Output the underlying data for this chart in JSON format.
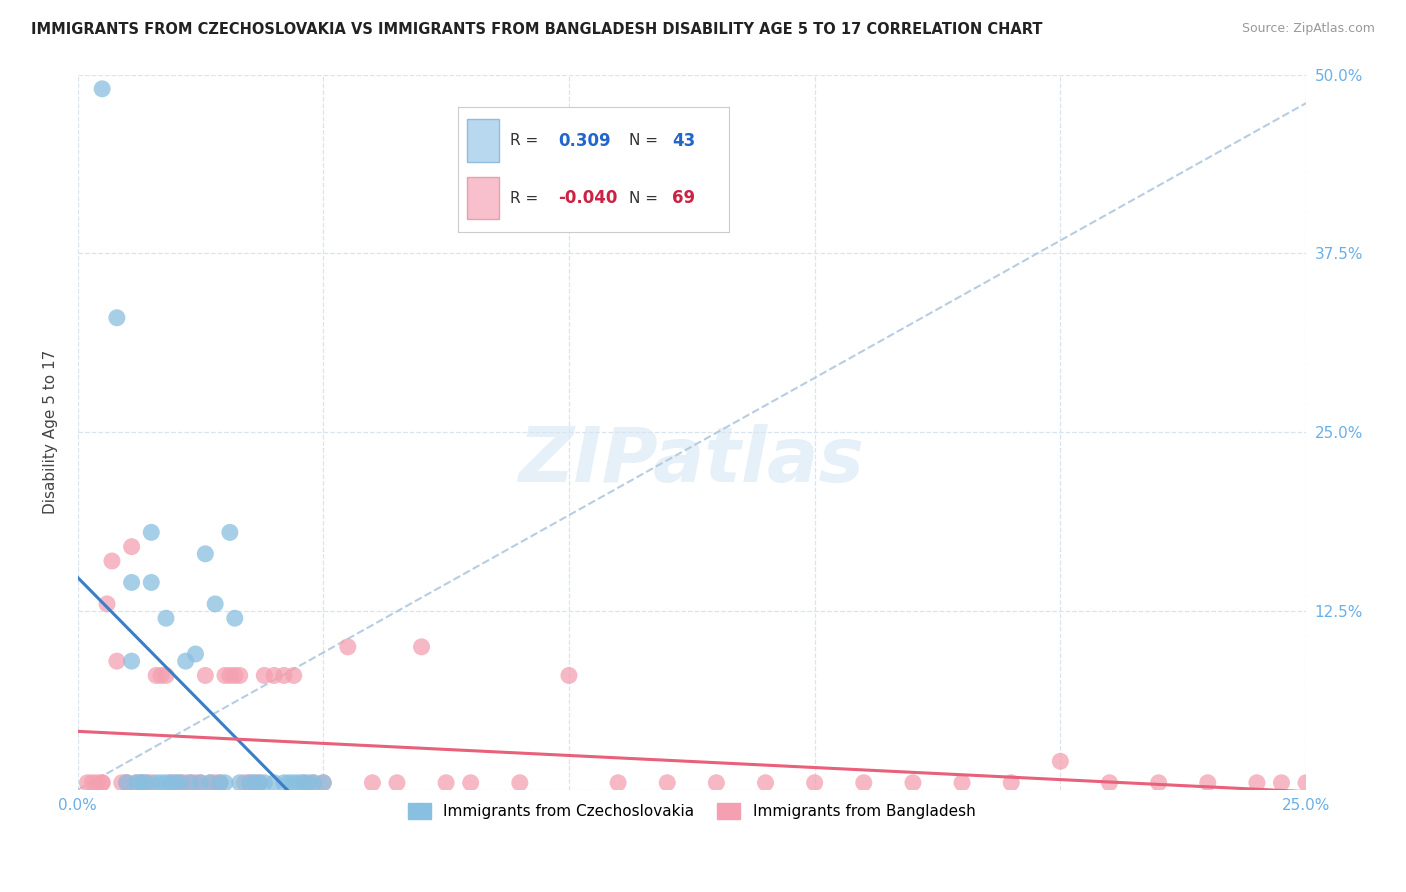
{
  "title": "IMMIGRANTS FROM CZECHOSLOVAKIA VS IMMIGRANTS FROM BANGLADESH DISABILITY AGE 5 TO 17 CORRELATION CHART",
  "source": "Source: ZipAtlas.com",
  "ylabel": "Disability Age 5 to 17",
  "xlim": [
    0.0,
    0.25
  ],
  "ylim": [
    0.0,
    0.5
  ],
  "xticks": [
    0.0,
    0.05,
    0.1,
    0.15,
    0.2,
    0.25
  ],
  "yticks": [
    0.0,
    0.125,
    0.25,
    0.375,
    0.5
  ],
  "legend_label1": "Immigrants from Czechoslovakia",
  "legend_label2": "Immigrants from Bangladesh",
  "R1": "0.309",
  "N1": "43",
  "R2": "-0.040",
  "N2": "69",
  "color1": "#89bfe0",
  "color2": "#f4a0b0",
  "trendline1_color": "#3a7ec8",
  "trendline2_color": "#e8607a",
  "refline_color": "#b0c8e0",
  "background_color": "#ffffff",
  "grid_color": "#d8e4f0",
  "tick_color": "#6ab0e8",
  "watermark_text": "ZIPatlas",
  "scatter1_x": [
    0.005,
    0.008,
    0.01,
    0.011,
    0.011,
    0.012,
    0.013,
    0.013,
    0.014,
    0.015,
    0.015,
    0.016,
    0.017,
    0.018,
    0.018,
    0.019,
    0.02,
    0.021,
    0.022,
    0.023,
    0.024,
    0.025,
    0.026,
    0.027,
    0.028,
    0.029,
    0.03,
    0.031,
    0.032,
    0.033,
    0.035,
    0.036,
    0.037,
    0.038,
    0.04,
    0.042,
    0.043,
    0.044,
    0.045,
    0.046,
    0.047,
    0.048,
    0.05
  ],
  "scatter1_y": [
    0.49,
    0.33,
    0.005,
    0.145,
    0.09,
    0.005,
    0.005,
    0.005,
    0.005,
    0.18,
    0.145,
    0.005,
    0.005,
    0.005,
    0.12,
    0.005,
    0.005,
    0.005,
    0.09,
    0.005,
    0.095,
    0.005,
    0.165,
    0.005,
    0.13,
    0.005,
    0.005,
    0.18,
    0.12,
    0.005,
    0.005,
    0.005,
    0.005,
    0.005,
    0.005,
    0.005,
    0.005,
    0.005,
    0.005,
    0.005,
    0.005,
    0.005,
    0.005
  ],
  "scatter2_x": [
    0.002,
    0.003,
    0.004,
    0.005,
    0.005,
    0.006,
    0.007,
    0.008,
    0.009,
    0.01,
    0.01,
    0.011,
    0.012,
    0.013,
    0.014,
    0.015,
    0.016,
    0.017,
    0.018,
    0.019,
    0.02,
    0.021,
    0.022,
    0.023,
    0.024,
    0.025,
    0.026,
    0.027,
    0.028,
    0.029,
    0.03,
    0.031,
    0.032,
    0.033,
    0.034,
    0.035,
    0.036,
    0.037,
    0.038,
    0.04,
    0.042,
    0.044,
    0.046,
    0.048,
    0.05,
    0.055,
    0.06,
    0.065,
    0.07,
    0.075,
    0.08,
    0.09,
    0.1,
    0.11,
    0.12,
    0.13,
    0.14,
    0.15,
    0.16,
    0.17,
    0.18,
    0.19,
    0.2,
    0.21,
    0.22,
    0.23,
    0.24,
    0.245,
    0.25
  ],
  "scatter2_y": [
    0.005,
    0.005,
    0.005,
    0.005,
    0.005,
    0.13,
    0.16,
    0.09,
    0.005,
    0.005,
    0.005,
    0.17,
    0.005,
    0.005,
    0.005,
    0.005,
    0.08,
    0.08,
    0.08,
    0.005,
    0.005,
    0.005,
    0.005,
    0.005,
    0.005,
    0.005,
    0.08,
    0.005,
    0.005,
    0.005,
    0.08,
    0.08,
    0.08,
    0.08,
    0.005,
    0.005,
    0.005,
    0.005,
    0.08,
    0.08,
    0.08,
    0.08,
    0.005,
    0.005,
    0.005,
    0.1,
    0.005,
    0.005,
    0.1,
    0.005,
    0.005,
    0.005,
    0.08,
    0.005,
    0.005,
    0.005,
    0.005,
    0.005,
    0.005,
    0.005,
    0.005,
    0.005,
    0.02,
    0.005,
    0.005,
    0.005,
    0.005,
    0.005,
    0.005
  ]
}
